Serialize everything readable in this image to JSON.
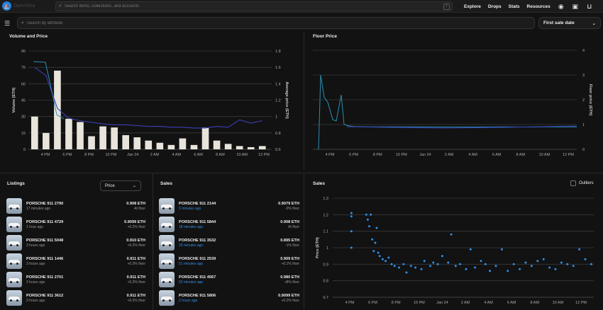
{
  "topbar": {
    "logo_text": "OpenSea",
    "search_placeholder": "Search items, collections, and accounts",
    "search_shortcut": "/",
    "nav": [
      "Explore",
      "Drops",
      "Stats",
      "Resources"
    ]
  },
  "subbar": {
    "search_placeholder": "Search by attribute",
    "sort_value": "First sale date"
  },
  "volume_chart": {
    "title": "Volume and Price",
    "left_axis_label": "Volume (ETH)",
    "right_axis_label": "Average price (ETH)",
    "left_ticks": [
      "0",
      "15",
      "30",
      "45",
      "60",
      "75",
      "90"
    ],
    "right_ticks": [
      "0.6",
      "0.8",
      "1",
      "1.2",
      "1.4",
      "1.6",
      "1.8"
    ],
    "x_ticks": [
      "4 PM",
      "6 PM",
      "8 PM",
      "10 PM",
      "Jan 24",
      "2 AM",
      "4 AM",
      "6 AM",
      "8 AM",
      "10 AM",
      "12 PM"
    ]
  },
  "floor_chart": {
    "title": "Floor Price",
    "right_axis_label": "Floor price (ETH)",
    "right_ticks": [
      "0",
      "1",
      "2",
      "3",
      "4"
    ],
    "x_ticks": [
      "4 PM",
      "6 PM",
      "8 PM",
      "10 PM",
      "Jan 24",
      "2 AM",
      "4 AM",
      "6 AM",
      "8 AM",
      "10 AM",
      "12 PM"
    ]
  },
  "sales_chart": {
    "title": "Sales",
    "outliers_label": "Outliers",
    "y_axis_label": "Price (ETH)",
    "y_ticks": [
      "0.7",
      "0.8",
      "0.9",
      "1",
      "1.1",
      "1.2",
      "1.3"
    ],
    "x_ticks": [
      "4 PM",
      "6 PM",
      "8 PM",
      "10 PM",
      "Jan 24",
      "2 AM",
      "4 AM",
      "6 AM",
      "8 AM",
      "10 AM",
      "12 PM"
    ]
  },
  "listings": {
    "title": "Listings",
    "sort_value": "Price",
    "items": [
      {
        "name": "PORSCHE 911 2790",
        "time": "17 minutes ago",
        "price": "0.908 ETH",
        "sub": "At floor"
      },
      {
        "name": "PORSCHE 911 4729",
        "time": "1 hour ago",
        "price": "0.9099 ETH",
        "sub": "+0.2% floor"
      },
      {
        "name": "PORSCHE 911 5048",
        "time": "3 hours ago",
        "price": "0.910 ETH",
        "sub": "+0.2% floor"
      },
      {
        "name": "PORSCHE 911 1446",
        "time": "3 hours ago",
        "price": "0.911 ETH",
        "sub": "+0.3% floor"
      },
      {
        "name": "PORSCHE 911 2701",
        "time": "3 hours ago",
        "price": "0.911 ETH",
        "sub": "+0.3% floor"
      },
      {
        "name": "PORSCHE 911 3612",
        "time": "3 hours ago",
        "price": "0.911 ETH",
        "sub": "+0.3% floor"
      }
    ]
  },
  "sales": {
    "title": "Sales",
    "items": [
      {
        "name": "PORSCHE 911 2144",
        "time": "3 minutes ago",
        "price": "0.9079 ETH",
        "sub": "-0% floor"
      },
      {
        "name": "PORSCHE 911 5844",
        "time": "18 minutes ago",
        "price": "0.908 ETH",
        "sub": "At floor"
      },
      {
        "name": "PORSCHE 911 3532",
        "time": "33 minutes ago",
        "price": "0.895 ETH",
        "sub": "-1% floor"
      },
      {
        "name": "PORSCHE 911 2539",
        "time": "51 minutes ago",
        "price": "0.909 ETH",
        "sub": "+0.1% floor"
      },
      {
        "name": "PORSCHE 911 4567",
        "time": "52 minutes ago",
        "price": "0.980 ETH",
        "sub": "+8% floor"
      },
      {
        "name": "PORSCHE 911 5806",
        "time": "2 hours ago",
        "price": "0.9099 ETH",
        "sub": "+0.2% floor"
      }
    ]
  },
  "chart_data": [
    {
      "type": "bar",
      "title": "Volume and Price",
      "ylabel": "Volume (ETH)",
      "y2label": "Average price (ETH)",
      "ylim": [
        0,
        90
      ],
      "y2lim": [
        0.6,
        1.8
      ],
      "series": [
        {
          "name": "Volume",
          "values": [
            30,
            15,
            72,
            28,
            25,
            12,
            21,
            20,
            13,
            11,
            8,
            6,
            4,
            10,
            4,
            20,
            8,
            5,
            3,
            2,
            3
          ]
        },
        {
          "name": "Average price",
          "values": [
            1.6,
            1.5,
            1.1,
            0.98,
            0.95,
            0.93,
            0.91,
            0.9,
            0.9,
            0.89,
            0.88,
            0.88,
            0.87,
            0.87,
            0.86,
            0.86,
            0.88,
            0.87,
            0.96,
            0.92,
            0.95
          ]
        }
      ]
    },
    {
      "type": "line",
      "title": "Floor Price",
      "ylabel": "Floor price (ETH)",
      "ylim": [
        0,
        4
      ],
      "values": [
        0,
        3.0,
        2.1,
        1.9,
        1.2,
        1.15,
        2.2,
        1.0,
        0.95,
        0.92,
        0.91,
        0.91,
        0.91,
        0.9,
        0.9,
        0.91,
        0.9,
        0.91,
        0.91,
        0.91,
        0.91
      ]
    },
    {
      "type": "scatter",
      "title": "Sales",
      "ylabel": "Price (ETH)",
      "ylim": [
        0.7,
        1.3
      ],
      "points": [
        [
          0.3,
          1.21
        ],
        [
          0.3,
          1.19
        ],
        [
          0.3,
          1.1
        ],
        [
          0.3,
          1.0
        ],
        [
          1.3,
          1.2
        ],
        [
          1.4,
          1.17
        ],
        [
          1.5,
          1.13
        ],
        [
          1.6,
          1.2
        ],
        [
          1.7,
          1.05
        ],
        [
          1.8,
          0.98
        ],
        [
          1.9,
          1.03
        ],
        [
          2.0,
          1.12
        ],
        [
          2.1,
          0.97
        ],
        [
          2.2,
          0.95
        ],
        [
          2.4,
          0.93
        ],
        [
          2.6,
          0.92
        ],
        [
          2.8,
          0.94
        ],
        [
          3.0,
          0.9
        ],
        [
          3.2,
          0.89
        ],
        [
          3.5,
          0.88
        ],
        [
          3.8,
          0.9
        ],
        [
          4.0,
          0.85
        ],
        [
          4.3,
          0.89
        ],
        [
          4.6,
          0.88
        ],
        [
          5.0,
          0.87
        ],
        [
          5.2,
          0.92
        ],
        [
          5.6,
          0.89
        ],
        [
          5.8,
          0.91
        ],
        [
          6.1,
          0.9
        ],
        [
          6.4,
          0.95
        ],
        [
          6.8,
          0.91
        ],
        [
          7.0,
          1.08
        ],
        [
          7.3,
          0.89
        ],
        [
          7.6,
          0.9
        ],
        [
          8.0,
          0.87
        ],
        [
          8.3,
          0.99
        ],
        [
          8.6,
          0.88
        ],
        [
          9.0,
          0.92
        ],
        [
          9.3,
          0.9
        ],
        [
          9.6,
          0.86
        ],
        [
          10.0,
          0.89
        ],
        [
          10.4,
          0.99
        ],
        [
          10.8,
          0.86
        ],
        [
          11.2,
          0.9
        ],
        [
          11.6,
          0.87
        ],
        [
          12.0,
          0.91
        ],
        [
          12.4,
          0.89
        ],
        [
          12.8,
          0.92
        ],
        [
          13.2,
          0.93
        ],
        [
          13.6,
          0.88
        ],
        [
          14.0,
          0.87
        ],
        [
          14.4,
          0.91
        ],
        [
          14.8,
          0.9
        ],
        [
          15.2,
          0.89
        ],
        [
          15.6,
          0.99
        ],
        [
          16.0,
          0.93
        ],
        [
          16.4,
          0.9
        ]
      ]
    }
  ]
}
